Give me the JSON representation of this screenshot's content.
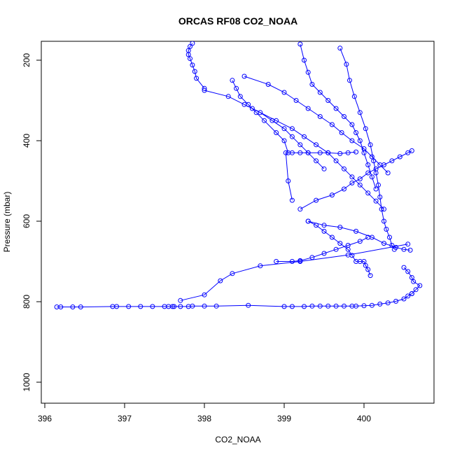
{
  "chart_data": {
    "type": "scatter",
    "title": "ORCAS RF08 CO2_NOAA",
    "xlabel": "CO2_NOAA",
    "ylabel": "Pressure (mbar)",
    "xlim": [
      396,
      400.9
    ],
    "ylim": [
      1050,
      150
    ],
    "y_reversed": true,
    "xticks": [
      396,
      397,
      398,
      399,
      400
    ],
    "yticks": [
      200,
      400,
      600,
      800,
      1000
    ],
    "grid": false,
    "legend": "none",
    "marker": "open-circle",
    "color": "#0000ff",
    "series": [
      {
        "x": [
          396.15,
          396.2,
          396.35,
          396.45,
          396.85,
          396.9,
          397.05,
          397.2,
          397.35,
          397.5,
          397.55,
          397.6,
          397.62,
          397.7,
          397.8,
          397.85,
          398.0,
          398.15,
          398.55,
          399.0,
          399.1,
          399.25,
          399.35,
          399.45,
          399.55,
          399.65,
          399.75,
          399.85,
          399.9,
          400.0,
          400.1,
          400.2,
          400.3,
          400.4,
          400.5,
          400.55,
          400.6
        ],
        "y": [
          813,
          813,
          813,
          813,
          812,
          812,
          812,
          812,
          812,
          812,
          812,
          812,
          812,
          812,
          812,
          811,
          811,
          811,
          809,
          812,
          812,
          812,
          811,
          811,
          811,
          811,
          811,
          811,
          811,
          810,
          809,
          806,
          803,
          799,
          793,
          786,
          780
        ]
      },
      {
        "x": [
          400.6,
          400.65,
          400.7,
          400.62,
          400.6,
          400.55,
          400.5
        ],
        "y": [
          780,
          770,
          760,
          750,
          740,
          725,
          715
        ]
      },
      {
        "x": [
          397.7,
          398.0,
          398.2,
          398.35,
          398.7,
          399.2,
          399.8,
          400.55
        ],
        "y": [
          797,
          783,
          748,
          730,
          711,
          700,
          684,
          657
        ]
      },
      {
        "x": [
          398.0,
          397.9,
          397.88,
          397.85,
          397.82,
          397.8,
          397.8,
          397.82,
          397.85
        ],
        "y": [
          270,
          245,
          228,
          212,
          196,
          186,
          176,
          166,
          158
        ]
      },
      {
        "x": [
          399.05,
          399.0,
          398.9,
          398.75,
          398.65,
          398.55,
          398.45,
          398.4,
          398.35
        ],
        "y": [
          430,
          400,
          380,
          350,
          330,
          310,
          290,
          270,
          250
        ]
      },
      {
        "x": [
          399.1,
          399.05,
          399.02,
          399.1,
          399.2,
          399.3,
          399.45,
          399.55,
          399.7,
          399.8,
          399.9
        ],
        "y": [
          548,
          500,
          430,
          430,
          430,
          430,
          430,
          430,
          432,
          430,
          428
        ]
      },
      {
        "x": [
          399.2,
          399.4,
          399.6,
          399.75,
          399.85,
          399.95,
          400.05,
          400.15,
          400.25,
          400.35,
          400.45,
          400.55,
          400.6
        ],
        "y": [
          570,
          548,
          535,
          520,
          505,
          495,
          480,
          470,
          460,
          450,
          440,
          430,
          425
        ]
      },
      {
        "x": [
          399.3,
          399.5,
          399.7,
          399.9,
          400.1,
          400.25,
          400.4,
          400.5,
          400.58
        ],
        "y": [
          600,
          610,
          615,
          625,
          640,
          655,
          665,
          670,
          672
        ]
      },
      {
        "x": [
          399.2,
          399.25,
          399.3,
          399.35,
          399.45,
          399.55,
          399.65,
          399.75,
          399.85,
          399.9,
          399.95,
          400.0,
          400.05,
          400.1,
          400.15
        ],
        "y": [
          160,
          200,
          230,
          260,
          280,
          300,
          320,
          340,
          360,
          380,
          400,
          430,
          460,
          490,
          520
        ]
      },
      {
        "x": [
          399.7,
          399.78,
          399.82,
          399.88,
          399.95,
          400.02,
          400.08,
          400.12,
          400.15,
          400.18,
          400.2,
          400.22,
          400.25,
          400.28,
          400.32,
          400.35,
          400.38
        ],
        "y": [
          170,
          210,
          250,
          290,
          330,
          370,
          410,
          450,
          480,
          510,
          540,
          570,
          600,
          620,
          640,
          660,
          670
        ]
      },
      {
        "x": [
          398.6,
          398.9,
          399.1,
          399.25,
          399.4,
          399.55,
          399.65,
          399.75,
          399.85,
          399.95,
          400.05,
          400.15,
          400.25
        ],
        "y": [
          320,
          350,
          370,
          390,
          410,
          430,
          450,
          470,
          490,
          510,
          530,
          550,
          570
        ]
      },
      {
        "x": [
          398.0,
          398.3,
          398.5,
          398.7,
          398.85,
          399.0,
          399.1,
          399.2,
          399.3,
          399.4,
          399.5
        ],
        "y": [
          275,
          290,
          310,
          330,
          350,
          370,
          390,
          410,
          430,
          450,
          470
        ]
      },
      {
        "x": [
          398.5,
          398.8,
          399.0,
          399.15,
          399.3,
          399.45,
          399.6,
          399.72,
          399.85,
          400.0,
          400.1,
          400.2,
          400.3
        ],
        "y": [
          240,
          260,
          280,
          300,
          320,
          340,
          360,
          380,
          400,
          420,
          440,
          460,
          480
        ]
      },
      {
        "x": [
          399.3,
          399.4,
          399.5,
          399.6,
          399.7,
          399.8,
          399.85,
          399.9,
          399.95,
          400.0,
          400.02,
          400.05,
          400.08
        ],
        "y": [
          600,
          610,
          625,
          640,
          655,
          670,
          685,
          700,
          700,
          700,
          710,
          720,
          735
        ]
      },
      {
        "x": [
          398.9,
          399.1,
          399.2,
          399.35,
          399.5,
          399.65,
          399.8,
          399.95,
          400.05
        ],
        "y": [
          700,
          700,
          698,
          690,
          680,
          670,
          660,
          650,
          640
        ]
      }
    ]
  }
}
